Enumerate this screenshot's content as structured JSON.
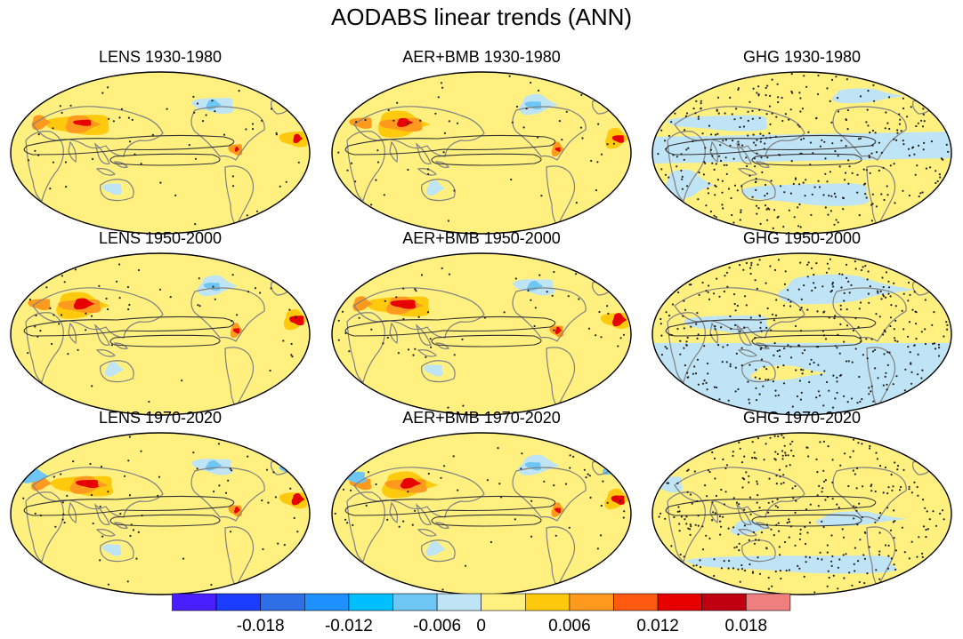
{
  "title": "AODABS linear trends (ANN)",
  "panels": [
    {
      "label": "LENS 1930-1980",
      "pattern": "aer",
      "strength": 0.7,
      "year": 1930
    },
    {
      "label": "AER+BMB 1930-1980",
      "pattern": "aer",
      "strength": 0.75,
      "year": 1930
    },
    {
      "label": "GHG 1930-1980",
      "pattern": "ghg",
      "strength": 0.5,
      "year": 1930
    },
    {
      "label": "LENS 1950-2000",
      "pattern": "aer",
      "strength": 0.95,
      "year": 1950
    },
    {
      "label": "AER+BMB 1950-2000",
      "pattern": "aer",
      "strength": 1.0,
      "year": 1950
    },
    {
      "label": "GHG 1950-2000",
      "pattern": "ghg",
      "strength": 0.55,
      "year": 1950
    },
    {
      "label": "LENS 1970-2020",
      "pattern": "aer",
      "strength": 0.9,
      "year": 1970
    },
    {
      "label": "AER+BMB 1970-2020",
      "pattern": "aer",
      "strength": 0.9,
      "year": 1970
    },
    {
      "label": "GHG 1970-2020",
      "pattern": "ghg",
      "strength": 0.55,
      "year": 1970
    }
  ],
  "colorbar": {
    "colors": [
      "#4a1fff",
      "#1a3dff",
      "#2f6fe6",
      "#1e90ff",
      "#00bfff",
      "#6ec6f5",
      "#bfe4f5",
      "#fff080",
      "#ffc90e",
      "#ff9a1f",
      "#ff5a10",
      "#e60000",
      "#c00010",
      "#f08080"
    ],
    "ticks": [
      {
        "label": "-0.018",
        "index": 2
      },
      {
        "label": "-0.012",
        "index": 4
      },
      {
        "label": "-0.006",
        "index": 6
      },
      {
        "label": "0",
        "index": 7
      },
      {
        "label": "0.006",
        "index": 9
      },
      {
        "label": "0.012",
        "index": 11
      },
      {
        "label": "0.018",
        "index": 13
      }
    ]
  },
  "colors": {
    "land_outline": "#808080",
    "contour": "#333333",
    "stipple": "#222222"
  }
}
